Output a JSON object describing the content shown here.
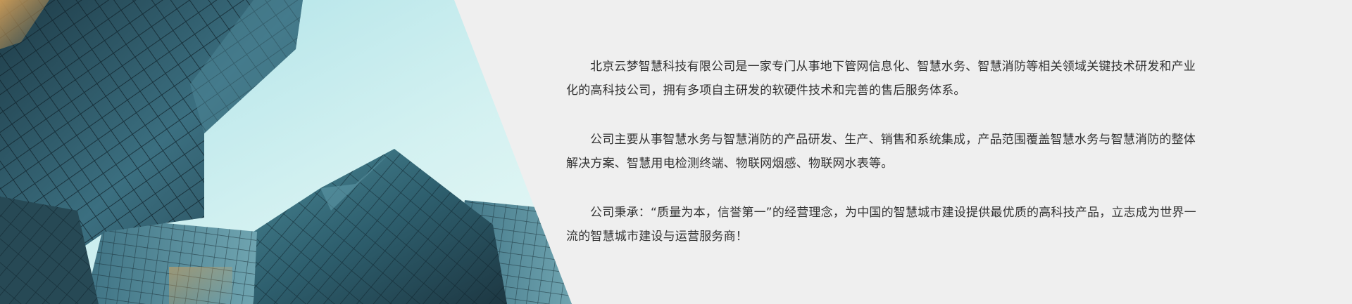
{
  "intro": {
    "paragraphs": [
      "北京云梦智慧科技有限公司是一家专门从事地下管网信息化、智慧水务、智慧消防等相关领域关键技术研发和产业化的高科技公司，拥有多项自主研发的软硬件技术和完善的售后服务体系。",
      "公司主要从事智慧水务与智慧消防的产品研发、生产、销售和系统集成，产品范围覆盖智慧水务与智慧消防的整体解决方案、智慧用电检测终端、物联网烟感、物联网水表等。",
      "公司秉承：“质量为本，信誉第一”的经营理念，为中国的智慧城市建设提供最优质的高科技产品，立志成为世界一流的智慧城市建设与运营服务商！"
    ]
  },
  "colors": {
    "background": "#efefef",
    "text": "#333333",
    "sky": "#bfe9ee",
    "glass": "#2f5d6f"
  },
  "icons": [
    "office-buildings-photo"
  ]
}
